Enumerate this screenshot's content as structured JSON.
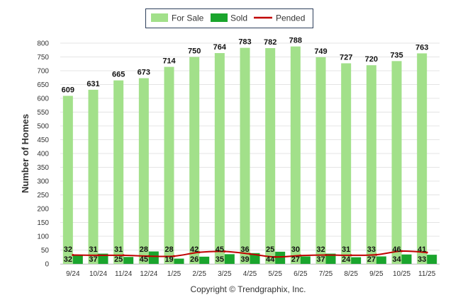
{
  "chart_data": {
    "type": "bar",
    "ylabel": "Number of Homes",
    "ylim": [
      0,
      800
    ],
    "yticks": [
      0,
      50,
      100,
      150,
      200,
      250,
      300,
      350,
      400,
      450,
      500,
      550,
      600,
      650,
      700,
      750,
      800
    ],
    "grid": true,
    "legend_position": "top-center",
    "categories": [
      "9/24",
      "10/24",
      "11/24",
      "12/24",
      "1/25",
      "2/25",
      "3/25",
      "4/25",
      "5/25",
      "6/25",
      "7/25",
      "8/25",
      "9/25",
      "10/25",
      "11/25"
    ],
    "series": [
      {
        "name": "For Sale",
        "kind": "bar",
        "color": "#a2e08a",
        "values": [
          609,
          631,
          665,
          673,
          714,
          750,
          764,
          783,
          782,
          788,
          749,
          727,
          720,
          735,
          763
        ]
      },
      {
        "name": "Sold",
        "kind": "bar",
        "color": "#1aa52d",
        "values": [
          32,
          37,
          25,
          45,
          19,
          26,
          35,
          39,
          44,
          27,
          37,
          24,
          27,
          34,
          33
        ]
      },
      {
        "name": "Pended",
        "kind": "line",
        "color": "#c00000",
        "values": [
          32,
          31,
          31,
          28,
          28,
          42,
          45,
          36,
          25,
          30,
          32,
          31,
          33,
          46,
          41
        ]
      }
    ]
  },
  "footer": {
    "copyright": "Copyright © Trendgraphix, Inc."
  }
}
